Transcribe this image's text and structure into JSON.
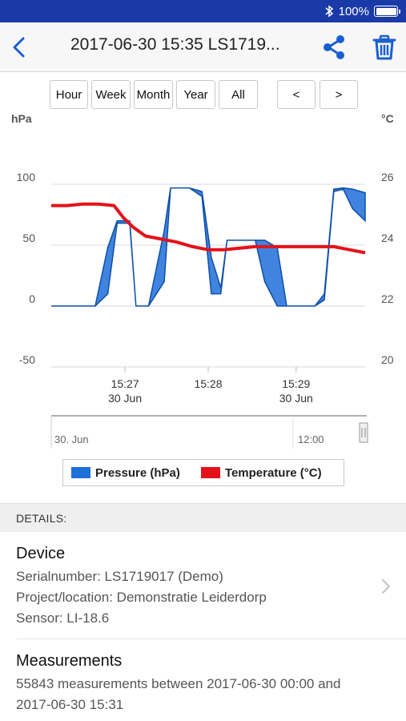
{
  "status_bar": {
    "battery": "100%"
  },
  "nav": {
    "title": "2017-06-30 15:35 LS1719..."
  },
  "range_buttons": [
    "Hour",
    "Week",
    "Month",
    "Year",
    "All"
  ],
  "nav_buttons": {
    "prev": "<",
    "next": ">"
  },
  "chart_data": {
    "type": "area",
    "title": "",
    "xlabel": "",
    "ylabel_left": "hPa",
    "ylabel_right": "°C",
    "yticks_left": [
      "100",
      "50",
      "0",
      "-50"
    ],
    "yticks_right": [
      "26",
      "24",
      "22",
      "20"
    ],
    "ylim_left": [
      -50,
      100
    ],
    "ylim_right": [
      20,
      26
    ],
    "x_ticks": [
      {
        "time": "15:27",
        "date": "30 Jun"
      },
      {
        "time": "15:28",
        "date": ""
      },
      {
        "time": "15:29",
        "date": "30 Jun"
      }
    ],
    "x_range_minutes": [
      15.26,
      15.3
    ],
    "grid": true,
    "legend_position": "bottom",
    "series": [
      {
        "name": "Pressure (hPa)",
        "axis": "left",
        "color": "#1e6fd9",
        "x": [
          0,
          0.05,
          0.08,
          0.12,
          0.14,
          0.18,
          0.21,
          0.25,
          0.27,
          0.31,
          0.36,
          0.38,
          0.41,
          0.44,
          0.48,
          0.51,
          0.54,
          0.56,
          0.6,
          0.65,
          0.68,
          0.72,
          0.75,
          0.8,
          0.84,
          0.87,
          0.9,
          0.93,
          0.96,
          1
        ],
        "upper": [
          0,
          0,
          0,
          0,
          0,
          48,
          70,
          70,
          0,
          0,
          62,
          97,
          97,
          97,
          94,
          40,
          15,
          54,
          54,
          54,
          54,
          48,
          0,
          0,
          0,
          10,
          96,
          97,
          96,
          93
        ],
        "lower": [
          0,
          0,
          0,
          0,
          0,
          10,
          68,
          68,
          0,
          0,
          20,
          97,
          97,
          97,
          90,
          10,
          10,
          54,
          54,
          54,
          20,
          0,
          0,
          0,
          0,
          5,
          94,
          96,
          80,
          70
        ]
      },
      {
        "name": "Temperature (°C)",
        "axis": "right",
        "color": "#e3121a",
        "x": [
          0,
          0.05,
          0.1,
          0.15,
          0.2,
          0.23,
          0.26,
          0.3,
          0.35,
          0.4,
          0.45,
          0.5,
          0.55,
          0.6,
          0.65,
          0.7,
          0.75,
          0.8,
          0.85,
          0.9,
          0.95,
          1
        ],
        "values": [
          25.3,
          25.3,
          25.35,
          25.35,
          25.3,
          24.9,
          24.6,
          24.3,
          24.2,
          24.1,
          23.95,
          23.85,
          23.85,
          23.9,
          23.95,
          23.95,
          23.95,
          23.95,
          23.95,
          23.95,
          23.85,
          23.75
        ]
      }
    ],
    "navigator_labels": [
      "30. Jun",
      "12:00"
    ]
  },
  "details": {
    "header": "DETAILS:",
    "device": {
      "title": "Device",
      "serial": "Serialnumber:  LS1719017 (Demo)",
      "project": "Project/location:  Demonstratie  Leiderdorp",
      "sensor": "Sensor: LI-18.6"
    },
    "measurements": {
      "title": "Measurements",
      "line1": "55843 measurements between 2017-06-30 00:00 and",
      "line2": "2017-06-30 15:31"
    }
  }
}
